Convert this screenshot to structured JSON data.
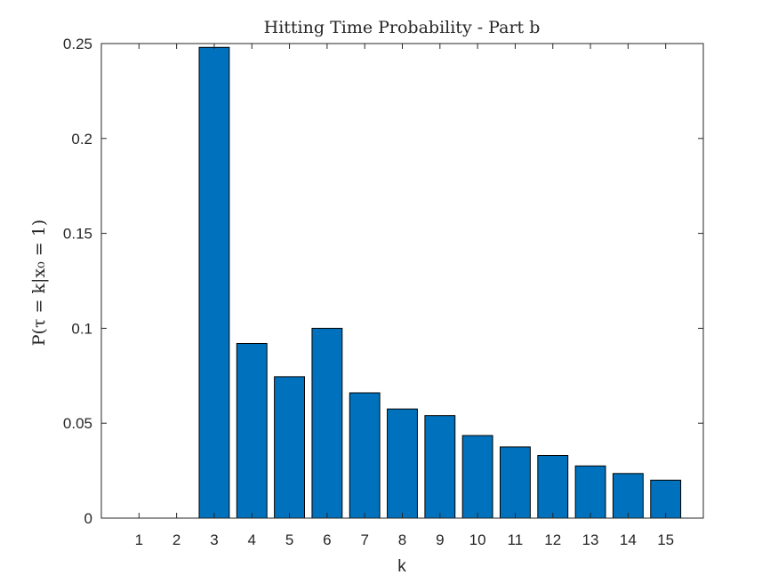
{
  "chart_data": {
    "type": "bar",
    "title": "Hitting Time Probability - Part b",
    "xlabel": "k",
    "ylabel": "P(τ = k|x₀ = 1)",
    "categories": [
      "1",
      "2",
      "3",
      "4",
      "5",
      "6",
      "7",
      "8",
      "9",
      "10",
      "11",
      "12",
      "13",
      "14",
      "15"
    ],
    "values": [
      0,
      0,
      0.248,
      0.092,
      0.0745,
      0.1,
      0.066,
      0.0575,
      0.054,
      0.0435,
      0.0375,
      0.033,
      0.0275,
      0.0235,
      0.02
    ],
    "xlim": [
      0,
      16
    ],
    "ylim": [
      0,
      0.25
    ],
    "yticks": [
      "0",
      "0.05",
      "0.1",
      "0.15",
      "0.2",
      "0.25"
    ],
    "ytick_values": [
      0,
      0.05,
      0.1,
      0.15,
      0.2,
      0.25
    ],
    "bar_color": "#0072BD",
    "bar_edge_color": "#000000",
    "grid": false,
    "legend": "none"
  }
}
